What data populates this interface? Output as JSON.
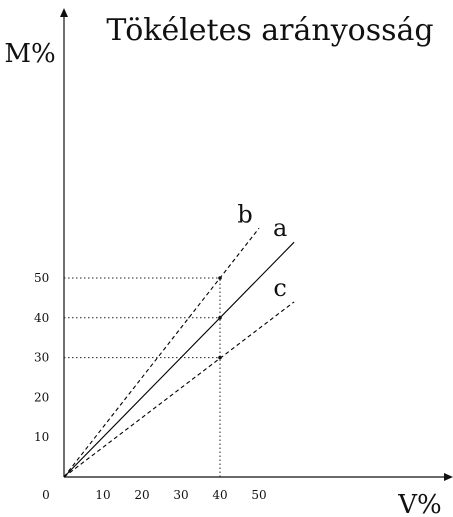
{
  "chart_data": {
    "type": "line",
    "title": "Tökéletes arányosság",
    "xlabel": "V%",
    "ylabel": "M%",
    "origin_label": "0",
    "x_ticks": [
      10,
      20,
      30,
      40,
      50
    ],
    "y_ticks": [
      10,
      20,
      30,
      40,
      50
    ],
    "xlim": [
      0,
      100
    ],
    "ylim": [
      0,
      110
    ],
    "grid": false,
    "series": [
      {
        "name": "a",
        "style": "solid",
        "color": "#000000",
        "x": [
          0,
          59
        ],
        "y": [
          0,
          59
        ]
      },
      {
        "name": "b",
        "style": "dashed",
        "color": "#000000",
        "x": [
          0,
          50
        ],
        "y": [
          0,
          62.5
        ]
      },
      {
        "name": "c",
        "style": "dashed",
        "color": "#000000",
        "x": [
          0,
          59
        ],
        "y": [
          0,
          44
        ]
      }
    ],
    "reference_points": [
      {
        "x": 40,
        "y": 50
      },
      {
        "x": 40,
        "y": 40
      },
      {
        "x": 40,
        "y": 30
      }
    ]
  }
}
